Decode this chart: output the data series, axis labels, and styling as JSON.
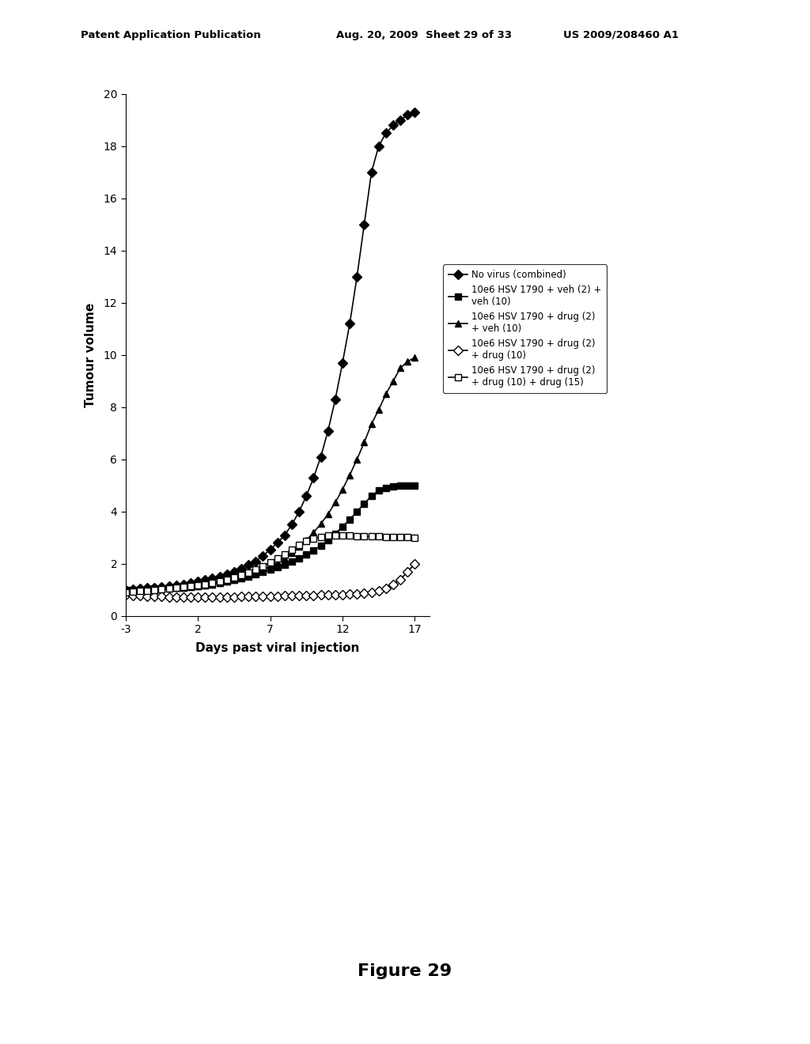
{
  "xlabel": "Days past viral injection",
  "ylabel": "Tumour volume",
  "xlim": [
    -3,
    18
  ],
  "ylim": [
    0,
    20
  ],
  "xticks": [
    -3,
    2,
    7,
    12,
    17
  ],
  "yticks": [
    0,
    2,
    4,
    6,
    8,
    10,
    12,
    14,
    16,
    18,
    20
  ],
  "figure_label": "Figure 29",
  "series": [
    {
      "label": "No virus (combined)",
      "marker": "D",
      "marker_fill": "black",
      "marker_size": 6,
      "linestyle": "-",
      "color": "black",
      "x": [
        -3,
        -2.5,
        -2,
        -1.5,
        -1,
        -0.5,
        0,
        0.5,
        1,
        1.5,
        2,
        2.5,
        3,
        3.5,
        4,
        4.5,
        5,
        5.5,
        6,
        6.5,
        7,
        7.5,
        8,
        8.5,
        9,
        9.5,
        10,
        10.5,
        11,
        11.5,
        12,
        12.5,
        13,
        13.5,
        14,
        14.5,
        15,
        15.5,
        16,
        16.5,
        17
      ],
      "y": [
        1.0,
        1.02,
        1.05,
        1.08,
        1.1,
        1.13,
        1.15,
        1.18,
        1.22,
        1.27,
        1.32,
        1.38,
        1.44,
        1.52,
        1.6,
        1.7,
        1.82,
        1.95,
        2.1,
        2.3,
        2.55,
        2.8,
        3.1,
        3.5,
        4.0,
        4.6,
        5.3,
        6.1,
        7.1,
        8.3,
        9.7,
        11.2,
        13.0,
        15.0,
        17.0,
        18.0,
        18.5,
        18.8,
        19.0,
        19.2,
        19.3
      ]
    },
    {
      "label": "10e6 HSV 1790 + veh (2) +\nveh (10)",
      "marker": "s",
      "marker_fill": "black",
      "marker_size": 6,
      "linestyle": "-",
      "color": "black",
      "x": [
        -3,
        -2.5,
        -2,
        -1.5,
        -1,
        -0.5,
        0,
        0.5,
        1,
        1.5,
        2,
        2.5,
        3,
        3.5,
        4,
        4.5,
        5,
        5.5,
        6,
        6.5,
        7,
        7.5,
        8,
        8.5,
        9,
        9.5,
        10,
        10.5,
        11,
        11.5,
        12,
        12.5,
        13,
        13.5,
        14,
        14.5,
        15,
        15.5,
        16,
        16.5,
        17
      ],
      "y": [
        1.0,
        1.0,
        1.0,
        1.02,
        1.05,
        1.05,
        1.08,
        1.08,
        1.1,
        1.12,
        1.15,
        1.18,
        1.22,
        1.27,
        1.32,
        1.38,
        1.45,
        1.52,
        1.6,
        1.68,
        1.77,
        1.87,
        1.97,
        2.08,
        2.2,
        2.35,
        2.52,
        2.7,
        2.9,
        3.15,
        3.42,
        3.7,
        4.0,
        4.3,
        4.6,
        4.8,
        4.9,
        4.95,
        5.0,
        5.0,
        5.0
      ]
    },
    {
      "label": "10e6 HSV 1790 + drug (2)\n+ veh (10)",
      "marker": "^",
      "marker_fill": "black",
      "marker_size": 6,
      "linestyle": "-",
      "color": "black",
      "x": [
        -3,
        -2.5,
        -2,
        -1.5,
        -1,
        -0.5,
        0,
        0.5,
        1,
        1.5,
        2,
        2.5,
        3,
        3.5,
        4,
        4.5,
        5,
        5.5,
        6,
        6.5,
        7,
        7.5,
        8,
        8.5,
        9,
        9.5,
        10,
        10.5,
        11,
        11.5,
        12,
        12.5,
        13,
        13.5,
        14,
        14.5,
        15,
        15.5,
        16,
        16.5,
        17
      ],
      "y": [
        0.9,
        0.92,
        0.95,
        0.97,
        1.0,
        1.02,
        1.05,
        1.07,
        1.1,
        1.12,
        1.15,
        1.18,
        1.22,
        1.27,
        1.32,
        1.38,
        1.45,
        1.55,
        1.65,
        1.77,
        1.9,
        2.05,
        2.22,
        2.42,
        2.65,
        2.9,
        3.2,
        3.53,
        3.9,
        4.35,
        4.85,
        5.4,
        6.0,
        6.65,
        7.35,
        7.9,
        8.5,
        9.0,
        9.5,
        9.75,
        9.9
      ]
    },
    {
      "label": "10e6 HSV 1790 + drug (2)\n+ drug (10)",
      "marker": "D",
      "marker_fill": "white",
      "marker_size": 6,
      "linestyle": "-",
      "color": "black",
      "x": [
        -3,
        -2.5,
        -2,
        -1.5,
        -1,
        -0.5,
        0,
        0.5,
        1,
        1.5,
        2,
        2.5,
        3,
        3.5,
        4,
        4.5,
        5,
        5.5,
        6,
        6.5,
        7,
        7.5,
        8,
        8.5,
        9,
        9.5,
        10,
        10.5,
        11,
        11.5,
        12,
        12.5,
        13,
        13.5,
        14,
        14.5,
        15,
        15.5,
        16,
        16.5,
        17
      ],
      "y": [
        0.8,
        0.78,
        0.77,
        0.76,
        0.75,
        0.74,
        0.73,
        0.72,
        0.72,
        0.72,
        0.72,
        0.72,
        0.72,
        0.72,
        0.73,
        0.73,
        0.74,
        0.74,
        0.75,
        0.75,
        0.76,
        0.76,
        0.77,
        0.77,
        0.78,
        0.78,
        0.79,
        0.8,
        0.8,
        0.81,
        0.82,
        0.83,
        0.85,
        0.87,
        0.9,
        0.95,
        1.05,
        1.2,
        1.4,
        1.7,
        2.0
      ]
    },
    {
      "label": "10e6 HSV 1790 + drug (2)\n+ drug (10) + drug (15)",
      "marker": "s",
      "marker_fill": "white",
      "marker_size": 6,
      "linestyle": "-",
      "color": "black",
      "x": [
        -3,
        -2.5,
        -2,
        -1.5,
        -1,
        -0.5,
        0,
        0.5,
        1,
        1.5,
        2,
        2.5,
        3,
        3.5,
        4,
        4.5,
        5,
        5.5,
        6,
        6.5,
        7,
        7.5,
        8,
        8.5,
        9,
        9.5,
        10,
        10.5,
        11,
        11.5,
        12,
        12.5,
        13,
        13.5,
        14,
        14.5,
        15,
        15.5,
        16,
        16.5,
        17
      ],
      "y": [
        0.9,
        0.92,
        0.95,
        0.97,
        1.0,
        1.02,
        1.05,
        1.08,
        1.12,
        1.15,
        1.18,
        1.22,
        1.27,
        1.33,
        1.4,
        1.48,
        1.57,
        1.67,
        1.78,
        1.9,
        2.05,
        2.2,
        2.37,
        2.55,
        2.72,
        2.87,
        2.97,
        3.03,
        3.07,
        3.08,
        3.08,
        3.07,
        3.06,
        3.05,
        3.05,
        3.04,
        3.03,
        3.03,
        3.02,
        3.02,
        3.0
      ]
    }
  ]
}
